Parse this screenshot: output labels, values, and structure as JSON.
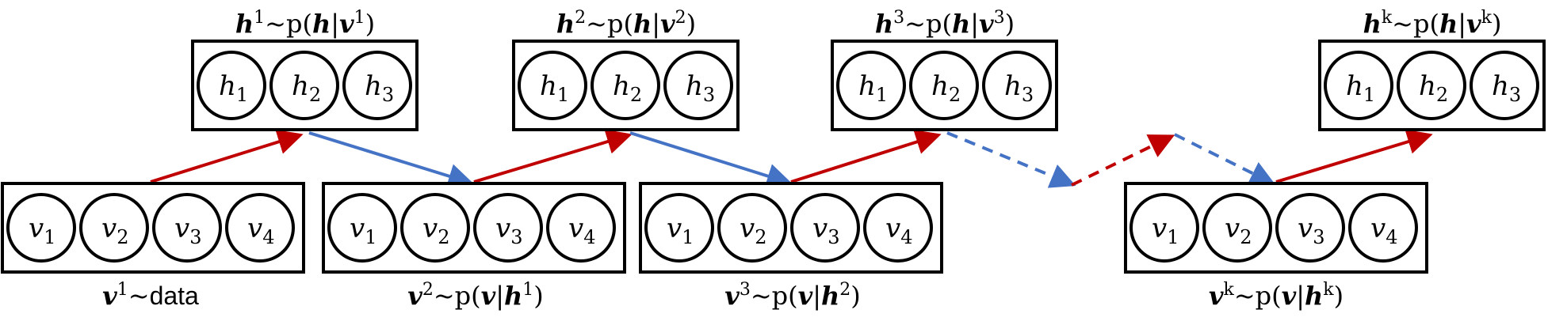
{
  "colors": {
    "forward_arrow": "#c00000",
    "backward_arrow": "#4472c4",
    "stroke": "#000000"
  },
  "hidden_node_labels": [
    {
      "base": "h",
      "sub": "1"
    },
    {
      "base": "h",
      "sub": "2"
    },
    {
      "base": "h",
      "sub": "3"
    }
  ],
  "visible_node_labels": [
    {
      "base": "v",
      "sub": "1"
    },
    {
      "base": "v",
      "sub": "2"
    },
    {
      "base": "v",
      "sub": "3"
    },
    {
      "base": "v",
      "sub": "4"
    }
  ],
  "hidden_layers": [
    {
      "var": "h",
      "sup": "1",
      "rel": "~p(",
      "a": "h",
      "bar": "|",
      "b": "v",
      "bsup": "1",
      "close": ")"
    },
    {
      "var": "h",
      "sup": "2",
      "rel": "~p(",
      "a": "h",
      "bar": "|",
      "b": "v",
      "bsup": "2",
      "close": ")"
    },
    {
      "var": "h",
      "sup": "3",
      "rel": "~p(",
      "a": "h",
      "bar": "|",
      "b": "v",
      "bsup": "3",
      "close": ")"
    },
    {
      "var": "h",
      "sup": "k",
      "rel": "~p(",
      "a": "h",
      "bar": "|",
      "b": "v",
      "bsup": "k",
      "close": ")"
    }
  ],
  "visible_layers": [
    {
      "var": "v",
      "sup": "1",
      "rel": "~",
      "data_word": "data"
    },
    {
      "var": "v",
      "sup": "2",
      "rel": "~p(",
      "a": "v",
      "bar": "|",
      "b": "h",
      "bsup": "1",
      "close": ")"
    },
    {
      "var": "v",
      "sup": "3",
      "rel": "~p(",
      "a": "v",
      "bar": "|",
      "b": "h",
      "bsup": "2",
      "close": ")"
    },
    {
      "var": "v",
      "sup": "k",
      "rel": "~p(",
      "a": "v",
      "bar": "|",
      "b": "h",
      "bsup": "k",
      "close": ")"
    }
  ]
}
